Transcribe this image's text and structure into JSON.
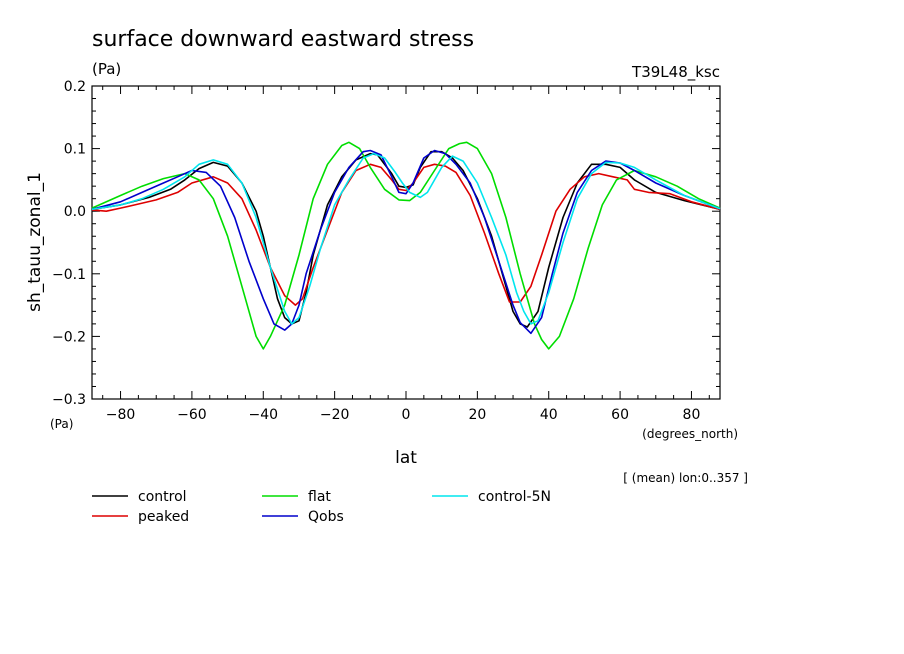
{
  "chart_data": {
    "type": "line",
    "title": "surface downward eastward stress",
    "units_label": "(Pa)",
    "model_label": "T39L48_ksc",
    "xlabel": "lat",
    "xunits": "(degrees_north)",
    "ylabel": "sh_tauu_zonal_1",
    "yunits": "(Pa)",
    "note": "[ (mean) lon:0..357 ]",
    "xlim": [
      -88,
      88
    ],
    "ylim": [
      -0.3,
      0.2
    ],
    "xticks": [
      -80,
      -60,
      -40,
      -20,
      0,
      20,
      40,
      60,
      80
    ],
    "xtick_labels": [
      "−80",
      "−60",
      "−40",
      "−20",
      "0",
      "20",
      "40",
      "60",
      "80"
    ],
    "yticks": [
      -0.3,
      -0.2,
      -0.1,
      0.0,
      0.1,
      0.2
    ],
    "ytick_labels": [
      "−0.3",
      "−0.2",
      "−0.1",
      "0.0",
      "0.1",
      "0.2"
    ],
    "grid": false,
    "legend_position": "bottom-left",
    "series": [
      {
        "name": "control",
        "color": "#000000",
        "points": [
          [
            -88,
            0.003
          ],
          [
            -80,
            0.01
          ],
          [
            -72,
            0.022
          ],
          [
            -66,
            0.035
          ],
          [
            -62,
            0.05
          ],
          [
            -58,
            0.068
          ],
          [
            -54,
            0.078
          ],
          [
            -50,
            0.072
          ],
          [
            -46,
            0.045
          ],
          [
            -42,
            0.0
          ],
          [
            -40,
            -0.04
          ],
          [
            -38,
            -0.09
          ],
          [
            -36,
            -0.14
          ],
          [
            -34,
            -0.17
          ],
          [
            -32,
            -0.18
          ],
          [
            -30,
            -0.175
          ],
          [
            -28,
            -0.13
          ],
          [
            -26,
            -0.07
          ],
          [
            -22,
            0.01
          ],
          [
            -18,
            0.055
          ],
          [
            -14,
            0.082
          ],
          [
            -10,
            0.092
          ],
          [
            -8,
            0.09
          ],
          [
            -4,
            0.06
          ],
          [
            -2,
            0.04
          ],
          [
            0,
            0.038
          ],
          [
            2,
            0.042
          ],
          [
            4,
            0.07
          ],
          [
            7,
            0.095
          ],
          [
            10,
            0.095
          ],
          [
            13,
            0.085
          ],
          [
            16,
            0.065
          ],
          [
            20,
            0.02
          ],
          [
            24,
            -0.04
          ],
          [
            28,
            -0.12
          ],
          [
            30,
            -0.16
          ],
          [
            32,
            -0.18
          ],
          [
            34,
            -0.185
          ],
          [
            37,
            -0.16
          ],
          [
            40,
            -0.09
          ],
          [
            44,
            -0.01
          ],
          [
            48,
            0.045
          ],
          [
            52,
            0.075
          ],
          [
            56,
            0.075
          ],
          [
            60,
            0.07
          ],
          [
            64,
            0.05
          ],
          [
            70,
            0.03
          ],
          [
            78,
            0.017
          ],
          [
            88,
            0.003
          ]
        ]
      },
      {
        "name": "peaked",
        "color": "#dd0000",
        "points": [
          [
            -88,
            0.002
          ],
          [
            -84,
            0.0
          ],
          [
            -80,
            0.005
          ],
          [
            -76,
            0.01
          ],
          [
            -70,
            0.018
          ],
          [
            -64,
            0.03
          ],
          [
            -60,
            0.045
          ],
          [
            -54,
            0.055
          ],
          [
            -50,
            0.045
          ],
          [
            -46,
            0.02
          ],
          [
            -42,
            -0.03
          ],
          [
            -38,
            -0.09
          ],
          [
            -34,
            -0.135
          ],
          [
            -31,
            -0.15
          ],
          [
            -29,
            -0.14
          ],
          [
            -26,
            -0.09
          ],
          [
            -22,
            -0.03
          ],
          [
            -18,
            0.03
          ],
          [
            -14,
            0.065
          ],
          [
            -10,
            0.075
          ],
          [
            -7,
            0.07
          ],
          [
            -4,
            0.05
          ],
          [
            -2,
            0.035
          ],
          [
            0,
            0.033
          ],
          [
            2,
            0.045
          ],
          [
            5,
            0.07
          ],
          [
            8,
            0.075
          ],
          [
            11,
            0.072
          ],
          [
            14,
            0.062
          ],
          [
            18,
            0.025
          ],
          [
            22,
            -0.035
          ],
          [
            26,
            -0.1
          ],
          [
            29,
            -0.145
          ],
          [
            32,
            -0.145
          ],
          [
            35,
            -0.12
          ],
          [
            38,
            -0.07
          ],
          [
            42,
            0.0
          ],
          [
            46,
            0.035
          ],
          [
            50,
            0.055
          ],
          [
            54,
            0.06
          ],
          [
            58,
            0.055
          ],
          [
            62,
            0.05
          ],
          [
            64,
            0.035
          ],
          [
            68,
            0.03
          ],
          [
            74,
            0.028
          ],
          [
            80,
            0.015
          ],
          [
            88,
            0.003
          ]
        ]
      },
      {
        "name": "flat",
        "color": "#00dd00",
        "points": [
          [
            -88,
            0.005
          ],
          [
            -80,
            0.025
          ],
          [
            -74,
            0.04
          ],
          [
            -68,
            0.052
          ],
          [
            -62,
            0.06
          ],
          [
            -58,
            0.05
          ],
          [
            -54,
            0.02
          ],
          [
            -50,
            -0.04
          ],
          [
            -46,
            -0.12
          ],
          [
            -42,
            -0.2
          ],
          [
            -40,
            -0.22
          ],
          [
            -38,
            -0.2
          ],
          [
            -34,
            -0.15
          ],
          [
            -30,
            -0.07
          ],
          [
            -26,
            0.02
          ],
          [
            -22,
            0.075
          ],
          [
            -18,
            0.105
          ],
          [
            -16,
            0.11
          ],
          [
            -13,
            0.1
          ],
          [
            -10,
            0.07
          ],
          [
            -6,
            0.035
          ],
          [
            -2,
            0.018
          ],
          [
            1,
            0.017
          ],
          [
            4,
            0.03
          ],
          [
            8,
            0.065
          ],
          [
            12,
            0.1
          ],
          [
            15,
            0.108
          ],
          [
            17,
            0.11
          ],
          [
            20,
            0.1
          ],
          [
            24,
            0.06
          ],
          [
            28,
            -0.01
          ],
          [
            32,
            -0.1
          ],
          [
            36,
            -0.18
          ],
          [
            38,
            -0.205
          ],
          [
            40,
            -0.22
          ],
          [
            43,
            -0.2
          ],
          [
            47,
            -0.14
          ],
          [
            51,
            -0.06
          ],
          [
            55,
            0.01
          ],
          [
            59,
            0.05
          ],
          [
            64,
            0.065
          ],
          [
            70,
            0.055
          ],
          [
            76,
            0.04
          ],
          [
            82,
            0.02
          ],
          [
            88,
            0.005
          ]
        ]
      },
      {
        "name": "Qobs",
        "color": "#0000cc",
        "points": [
          [
            -88,
            0.003
          ],
          [
            -80,
            0.015
          ],
          [
            -74,
            0.03
          ],
          [
            -68,
            0.045
          ],
          [
            -64,
            0.055
          ],
          [
            -60,
            0.065
          ],
          [
            -56,
            0.062
          ],
          [
            -52,
            0.04
          ],
          [
            -48,
            -0.01
          ],
          [
            -44,
            -0.08
          ],
          [
            -40,
            -0.14
          ],
          [
            -37,
            -0.18
          ],
          [
            -34,
            -0.19
          ],
          [
            -32,
            -0.18
          ],
          [
            -30,
            -0.15
          ],
          [
            -28,
            -0.1
          ],
          [
            -24,
            -0.03
          ],
          [
            -20,
            0.03
          ],
          [
            -16,
            0.07
          ],
          [
            -12,
            0.095
          ],
          [
            -10,
            0.097
          ],
          [
            -7,
            0.09
          ],
          [
            -4,
            0.055
          ],
          [
            -2,
            0.03
          ],
          [
            0,
            0.028
          ],
          [
            2,
            0.045
          ],
          [
            5,
            0.085
          ],
          [
            8,
            0.097
          ],
          [
            11,
            0.092
          ],
          [
            14,
            0.075
          ],
          [
            18,
            0.045
          ],
          [
            22,
            -0.01
          ],
          [
            26,
            -0.08
          ],
          [
            30,
            -0.15
          ],
          [
            32,
            -0.178
          ],
          [
            35,
            -0.195
          ],
          [
            38,
            -0.17
          ],
          [
            41,
            -0.1
          ],
          [
            44,
            -0.035
          ],
          [
            48,
            0.03
          ],
          [
            52,
            0.065
          ],
          [
            56,
            0.08
          ],
          [
            60,
            0.077
          ],
          [
            64,
            0.065
          ],
          [
            70,
            0.045
          ],
          [
            78,
            0.025
          ],
          [
            88,
            0.004
          ]
        ]
      },
      {
        "name": "control-5N",
        "color": "#00e5ee",
        "points": [
          [
            -88,
            0.003
          ],
          [
            -80,
            0.01
          ],
          [
            -74,
            0.02
          ],
          [
            -68,
            0.035
          ],
          [
            -62,
            0.055
          ],
          [
            -58,
            0.075
          ],
          [
            -54,
            0.082
          ],
          [
            -50,
            0.075
          ],
          [
            -46,
            0.045
          ],
          [
            -42,
            -0.01
          ],
          [
            -38,
            -0.09
          ],
          [
            -34,
            -0.16
          ],
          [
            -32,
            -0.18
          ],
          [
            -30,
            -0.17
          ],
          [
            -27,
            -0.12
          ],
          [
            -24,
            -0.06
          ],
          [
            -20,
            0.01
          ],
          [
            -16,
            0.05
          ],
          [
            -12,
            0.085
          ],
          [
            -9,
            0.092
          ],
          [
            -6,
            0.085
          ],
          [
            -3,
            0.062
          ],
          [
            -1,
            0.045
          ],
          [
            1,
            0.03
          ],
          [
            4,
            0.022
          ],
          [
            6,
            0.03
          ],
          [
            10,
            0.07
          ],
          [
            13,
            0.088
          ],
          [
            16,
            0.08
          ],
          [
            20,
            0.045
          ],
          [
            24,
            -0.01
          ],
          [
            28,
            -0.07
          ],
          [
            31,
            -0.13
          ],
          [
            33,
            -0.16
          ],
          [
            35,
            -0.18
          ],
          [
            37,
            -0.175
          ],
          [
            40,
            -0.13
          ],
          [
            44,
            -0.05
          ],
          [
            48,
            0.02
          ],
          [
            52,
            0.06
          ],
          [
            56,
            0.078
          ],
          [
            60,
            0.077
          ],
          [
            64,
            0.07
          ],
          [
            70,
            0.05
          ],
          [
            78,
            0.025
          ],
          [
            88,
            0.004
          ]
        ]
      }
    ]
  }
}
